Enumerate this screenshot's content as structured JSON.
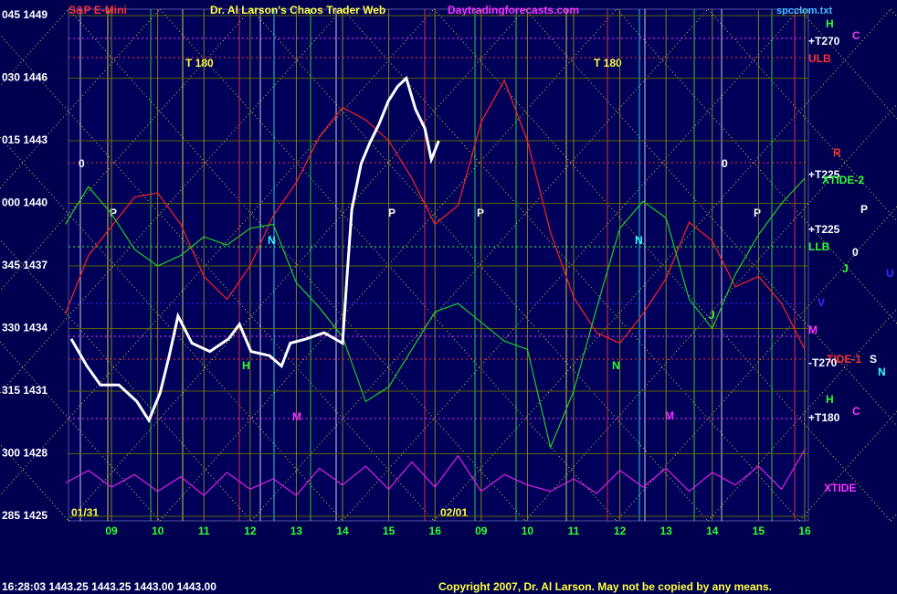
{
  "chart_data": {
    "type": "line",
    "title": "Dr. Al Larson's Chaos Trader Web",
    "symbol": "S&P E-Mini",
    "site": "Daytradingforecasts.com",
    "file": "spcclom.txt",
    "status": "16:28:03  1443.25  1443.25  1443.00  1443.00",
    "copyright": "Copyright 2007, Dr. Al Larson. May not be copied by any means.",
    "dates": [
      "01/31",
      "02/01"
    ],
    "xlim": [
      -0.93,
      15.08
    ],
    "xticks": [
      {
        "value": 0,
        "label": "09"
      },
      {
        "value": 1,
        "label": "10"
      },
      {
        "value": 2,
        "label": "11"
      },
      {
        "value": 3,
        "label": "12"
      },
      {
        "value": 4,
        "label": "13"
      },
      {
        "value": 5,
        "label": "14"
      },
      {
        "value": 6,
        "label": "15"
      },
      {
        "value": 7,
        "label": "16"
      },
      {
        "value": 8,
        "label": "09"
      },
      {
        "value": 9,
        "label": "10"
      },
      {
        "value": 10,
        "label": "11"
      },
      {
        "value": 11,
        "label": "12"
      },
      {
        "value": 12,
        "label": "13"
      },
      {
        "value": 13,
        "label": "14"
      },
      {
        "value": 14,
        "label": "15"
      },
      {
        "value": 15,
        "label": "16"
      }
    ],
    "ylim": [
      1424.78,
      1449.31
    ],
    "yticks": [
      {
        "value": 1449,
        "label": "045 1449"
      },
      {
        "value": 1446,
        "label": "030 1446"
      },
      {
        "value": 1443,
        "label": "015 1443"
      },
      {
        "value": 1440,
        "label": "000 1440"
      },
      {
        "value": 1437,
        "label": "345 1437"
      },
      {
        "value": 1434,
        "label": "330 1434"
      },
      {
        "value": 1431,
        "label": "315 1431"
      },
      {
        "value": 1428,
        "label": "300 1428"
      },
      {
        "value": 1425,
        "label": "285 1425"
      }
    ],
    "grid": true,
    "series": [
      {
        "color": "#ff2020",
        "x": [
          -1,
          -0.5,
          0,
          0.5,
          1,
          1.5,
          2,
          2.5,
          3,
          3.5,
          4,
          4.5,
          5,
          5.5,
          6,
          6.5,
          7,
          7.5,
          8,
          8.5,
          9,
          9.5,
          10,
          10.5,
          11,
          11.5,
          12,
          12.5,
          13,
          13.5,
          14,
          14.5,
          15
        ],
        "values": [
          1434.7,
          1437.5,
          1438.9,
          1440.3,
          1440.5,
          1439.0,
          1436.5,
          1435.4,
          1437.0,
          1439.4,
          1441.0,
          1443.2,
          1444.6,
          1444.0,
          1443.0,
          1441.2,
          1439.0,
          1439.9,
          1443.9,
          1445.9,
          1443.0,
          1438.6,
          1435.5,
          1433.8,
          1433.3,
          1434.7,
          1436.4,
          1439.1,
          1438.2,
          1436.0,
          1436.5,
          1435.2,
          1433.0
        ]
      },
      {
        "color": "#22cc22",
        "x": [
          -1,
          -0.5,
          0,
          0.5,
          1,
          1.5,
          2,
          2.5,
          3,
          3.5,
          4,
          4.5,
          5,
          5.5,
          6,
          6.5,
          7,
          7.5,
          8,
          8.5,
          9,
          9.5,
          10,
          10.5,
          11,
          11.5,
          12,
          12.5,
          13,
          13.5,
          14,
          14.5,
          15
        ],
        "values": [
          1439.0,
          1440.8,
          1439.5,
          1437.8,
          1437.0,
          1437.5,
          1438.4,
          1438.0,
          1438.8,
          1439.0,
          1436.2,
          1435.0,
          1433.6,
          1430.5,
          1431.2,
          1433.0,
          1434.8,
          1435.2,
          1434.3,
          1433.4,
          1433.0,
          1428.3,
          1431.0,
          1435.0,
          1438.8,
          1440.1,
          1439.3,
          1435.4,
          1434.0,
          1436.6,
          1438.5,
          1440.0,
          1441.2
        ]
      },
      {
        "color": "#e020e0",
        "x": [
          -1,
          -0.5,
          0,
          0.5,
          1,
          1.5,
          2,
          2.5,
          3,
          3.5,
          4,
          4.5,
          5,
          5.5,
          6,
          6.5,
          7,
          7.5,
          8,
          8.5,
          9,
          9.5,
          10,
          10.5,
          11,
          11.5,
          12,
          12.5,
          13,
          13.5,
          14,
          14.5,
          15
        ],
        "values": [
          1426.6,
          1427.2,
          1426.4,
          1427.0,
          1426.2,
          1426.9,
          1426.0,
          1427.1,
          1426.3,
          1426.8,
          1426.0,
          1427.3,
          1426.5,
          1427.4,
          1426.3,
          1427.6,
          1426.4,
          1427.9,
          1426.2,
          1427.0,
          1426.5,
          1426.2,
          1426.8,
          1426.1,
          1427.2,
          1426.4,
          1427.3,
          1426.2,
          1427.1,
          1426.5,
          1427.4,
          1426.3,
          1428.2
        ]
      },
      {
        "color": "#ffffff",
        "x": [
          -0.87,
          -0.53,
          -0.24,
          0.16,
          0.55,
          0.81,
          1.05,
          1.25,
          1.44,
          1.74,
          2.13,
          2.53,
          2.77,
          3.02,
          3.42,
          3.68,
          3.87,
          4.21,
          4.6,
          5.0,
          5.1,
          5.2,
          5.4,
          5.59,
          5.79,
          5.99,
          6.19,
          6.38,
          6.58,
          6.78,
          6.92,
          7.08
        ],
        "values": [
          1433.5,
          1432.2,
          1431.3,
          1431.3,
          1430.5,
          1429.6,
          1430.9,
          1432.7,
          1434.6,
          1433.3,
          1432.9,
          1433.5,
          1434.2,
          1432.9,
          1432.7,
          1432.2,
          1433.3,
          1433.5,
          1433.8,
          1433.3,
          1436.6,
          1439.7,
          1441.9,
          1442.9,
          1443.8,
          1444.9,
          1445.6,
          1446.0,
          1444.5,
          1443.6,
          1442.1,
          1443.0
        ]
      }
    ],
    "annotations": [
      "T 180",
      "T 180",
      "+T270",
      "ULB",
      "R",
      "+T225",
      "XTIDE-2",
      "+T225",
      "LLB",
      "TIDE-1",
      "-T270",
      "+T180",
      "XTIDE",
      "H",
      "C",
      "P",
      "0",
      "J",
      "U",
      "V",
      "M",
      "S",
      "N",
      "H",
      "C",
      "0",
      "P",
      "P",
      "P",
      "P",
      "0",
      "N",
      "N",
      "H",
      "M",
      "M",
      "N",
      "J"
    ]
  }
}
